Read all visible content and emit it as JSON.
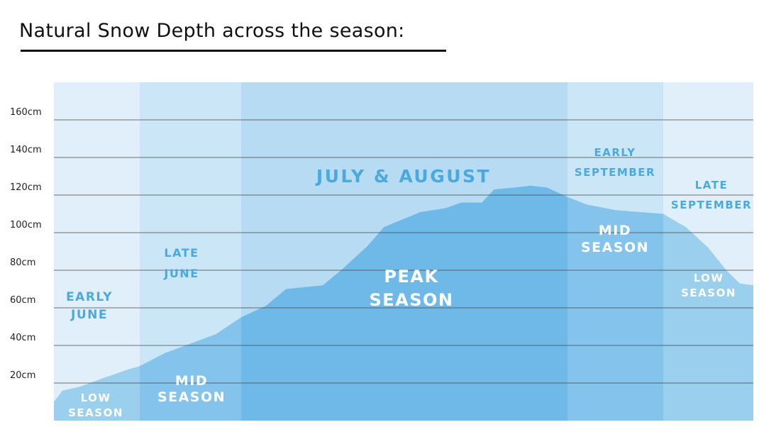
{
  "title": "Natural Snow Depth across the season:",
  "chart_data": {
    "type": "area",
    "title": "Natural Snow Depth across the season:",
    "y_unit": "cm",
    "ylim": [
      0,
      180
    ],
    "yticks": [
      20,
      40,
      60,
      80,
      100,
      120,
      140,
      160
    ],
    "ytick_labels": [
      "20cm",
      "40cm",
      "60cm",
      "80cm",
      "100cm",
      "120cm",
      "140cm",
      "160cm"
    ],
    "grid": true,
    "periods": [
      {
        "label": "EARLY JUNE",
        "label_lines": [
          "EARLY",
          "JUNE"
        ],
        "start": 0,
        "end": 1
      },
      {
        "label": "LATE JUNE",
        "label_lines": [
          "LATE",
          "JUNE"
        ],
        "start": 1,
        "end": 2
      },
      {
        "label": "JULY & AUGUST",
        "label_lines": [
          "JULY & AUGUST"
        ],
        "start": 2,
        "end": 6
      },
      {
        "label": "EARLY SEPTEMBER",
        "label_lines": [
          "EARLY",
          "SEPTEMBER"
        ],
        "start": 6,
        "end": 7
      },
      {
        "label": "LATE SEPTEMBER",
        "label_lines": [
          "LATE",
          "SEPTEMBER"
        ],
        "start": 7,
        "end": 8
      }
    ],
    "seasons": [
      {
        "label_lines": [
          "LOW",
          "SEASON"
        ],
        "start": 0,
        "end": 1
      },
      {
        "label_lines": [
          "MID",
          "SEASON"
        ],
        "start": 1,
        "end": 2
      },
      {
        "label_lines": [
          "PEAK",
          "SEASON"
        ],
        "start": 2,
        "end": 6
      },
      {
        "label_lines": [
          "MID",
          "SEASON"
        ],
        "start": 6,
        "end": 7
      },
      {
        "label_lines": [
          "LOW",
          "SEASON"
        ],
        "start": 7,
        "end": 8
      }
    ],
    "series": [
      {
        "x": [
          0,
          0.1,
          0.3,
          0.6,
          0.85,
          1.0,
          1.25,
          1.5,
          1.75,
          2.0,
          2.3,
          2.55,
          3.0,
          3.25,
          3.55,
          3.75,
          4.2,
          4.5,
          4.7,
          4.95,
          5.1,
          5.35,
          5.55,
          5.75,
          6.0,
          6.2,
          6.5,
          6.75,
          7.0,
          7.25,
          7.5,
          7.7,
          7.85,
          8.0
        ],
        "y": [
          10,
          16,
          18,
          23,
          27,
          29,
          36,
          41,
          46,
          55,
          61,
          70,
          72,
          81,
          93,
          103,
          111,
          113,
          116,
          116,
          123,
          124,
          125,
          124,
          119,
          115,
          112,
          111,
          110,
          103,
          92,
          80,
          73,
          72
        ]
      }
    ]
  },
  "colors": {
    "zone_low": "#e0eff9",
    "zone_mid": "#cae6f7",
    "zone_peak": "#b6dbf2",
    "area_low": "#9bcfee",
    "area_mid": "#84c4ec",
    "area_peak": "#6fb9e8",
    "period_label": "#4aaade",
    "season_label": "#ffffff",
    "grid": "#444444"
  }
}
